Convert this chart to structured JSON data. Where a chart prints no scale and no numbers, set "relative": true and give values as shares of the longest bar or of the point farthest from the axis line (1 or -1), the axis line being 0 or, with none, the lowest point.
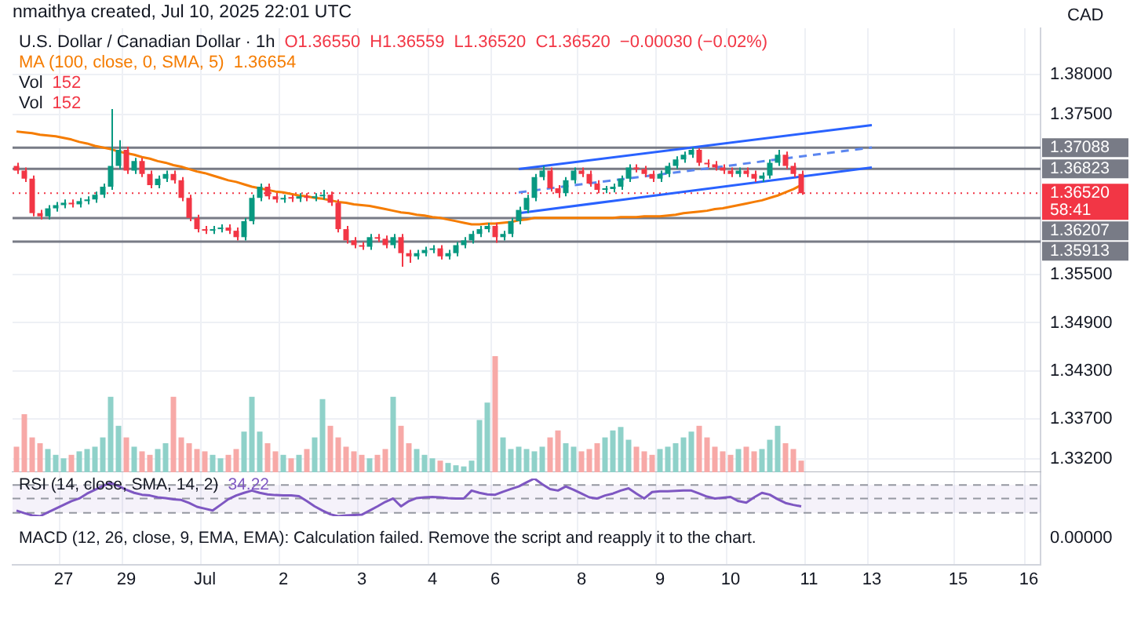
{
  "chart_data": [
    {
      "type": "candlestick",
      "title": "U.S. Dollar / Canadian Dollar · 1h",
      "annotations": [
        "nmaithya created, Jul 10, 2025 22:01 UTC",
        "O1.36550",
        "H1.36559",
        "L1.36520",
        "C1.36520",
        "−0.00030 (−0.02%)",
        "1.36654",
        "58:41",
        "CAD"
      ],
      "categories": [
        null,
        null,
        null,
        null,
        null,
        null,
        "27",
        null,
        null,
        null,
        null,
        null,
        null,
        null,
        "29",
        null,
        null,
        null,
        null,
        null,
        null,
        null,
        null,
        null,
        "Jul",
        null,
        null,
        null,
        null,
        null,
        null,
        null,
        null,
        null,
        "2",
        null,
        null,
        null,
        null,
        null,
        null,
        null,
        null,
        null,
        "3",
        null,
        null,
        null,
        null,
        null,
        null,
        null,
        null,
        "4",
        null,
        null,
        null,
        null,
        null,
        null,
        null,
        "6",
        null,
        null,
        null,
        null,
        null,
        null,
        null,
        null,
        null,
        null,
        "8",
        null,
        null,
        null,
        null,
        null,
        null,
        null,
        null,
        null,
        "9",
        null,
        null,
        null,
        null,
        null,
        null,
        null,
        null,
        "10",
        null,
        null,
        null,
        null,
        null,
        null,
        null,
        null,
        null,
        "11",
        null,
        null,
        null,
        null,
        null,
        null,
        null,
        "13",
        null,
        null,
        null,
        null,
        null,
        null,
        null,
        null,
        null,
        null,
        "15",
        null,
        null,
        null,
        null,
        null,
        null,
        null,
        null,
        "16",
        null
      ],
      "ohlc": [
        [
          1.3686,
          1.369,
          1.3676,
          1.368
        ],
        [
          1.368,
          1.3684,
          1.3666,
          1.367
        ],
        [
          1.367,
          1.3674,
          1.3623,
          1.3627
        ],
        [
          1.3627,
          1.3631,
          1.3619,
          1.3623
        ],
        [
          1.3623,
          1.3637,
          1.3619,
          1.3633
        ],
        [
          1.3633,
          1.3641,
          1.3629,
          1.3637
        ],
        [
          1.3637,
          1.3644,
          1.3633,
          1.364
        ],
        [
          1.364,
          1.3644,
          1.3634,
          1.3638
        ],
        [
          1.3638,
          1.3646,
          1.3634,
          1.3642
        ],
        [
          1.3642,
          1.3648,
          1.3638,
          1.3644
        ],
        [
          1.3644,
          1.3654,
          1.364,
          1.365
        ],
        [
          1.365,
          1.3664,
          1.3646,
          1.366
        ],
        [
          1.366,
          1.3757,
          1.3656,
          1.3686
        ],
        [
          1.3686,
          1.3718,
          1.3682,
          1.3706
        ],
        [
          1.3706,
          1.371,
          1.3676,
          1.368
        ],
        [
          1.368,
          1.3696,
          1.3676,
          1.3692
        ],
        [
          1.3692,
          1.3696,
          1.3672,
          1.3676
        ],
        [
          1.3676,
          1.368,
          1.3658,
          1.3662
        ],
        [
          1.3662,
          1.3674,
          1.3658,
          1.367
        ],
        [
          1.367,
          1.368,
          1.3666,
          1.3676
        ],
        [
          1.3676,
          1.368,
          1.3664,
          1.3668
        ],
        [
          1.3668,
          1.3672,
          1.3642,
          1.3646
        ],
        [
          1.3646,
          1.365,
          1.3617,
          1.3621
        ],
        [
          1.3621,
          1.3625,
          1.3603,
          1.3607
        ],
        [
          1.3607,
          1.3611,
          1.3601,
          1.3605
        ],
        [
          1.3605,
          1.3611,
          1.3601,
          1.3607
        ],
        [
          1.3607,
          1.3613,
          1.3603,
          1.3609
        ],
        [
          1.3609,
          1.3613,
          1.3601,
          1.3605
        ],
        [
          1.3605,
          1.3609,
          1.3593,
          1.3597
        ],
        [
          1.3597,
          1.3621,
          1.3593,
          1.3617
        ],
        [
          1.3617,
          1.365,
          1.3613,
          1.3646
        ],
        [
          1.3646,
          1.3664,
          1.3642,
          1.366
        ],
        [
          1.366,
          1.3664,
          1.3644,
          1.3648
        ],
        [
          1.3648,
          1.3652,
          1.364,
          1.3644
        ],
        [
          1.3644,
          1.365,
          1.364,
          1.3646
        ],
        [
          1.3646,
          1.365,
          1.3641,
          1.3645
        ],
        [
          1.3645,
          1.3652,
          1.3641,
          1.3648
        ],
        [
          1.3648,
          1.3652,
          1.3642,
          1.3646
        ],
        [
          1.3646,
          1.3652,
          1.3642,
          1.3648
        ],
        [
          1.3648,
          1.3656,
          1.3644,
          1.365
        ],
        [
          1.365,
          1.3654,
          1.3636,
          1.364
        ],
        [
          1.364,
          1.3644,
          1.3603,
          1.3607
        ],
        [
          1.3607,
          1.3611,
          1.3589,
          1.3593
        ],
        [
          1.3593,
          1.3597,
          1.3583,
          1.3587
        ],
        [
          1.3587,
          1.3591,
          1.3581,
          1.3585
        ],
        [
          1.3585,
          1.3601,
          1.3581,
          1.3597
        ],
        [
          1.3597,
          1.3601,
          1.3591,
          1.3595
        ],
        [
          1.3595,
          1.3599,
          1.3583,
          1.3587
        ],
        [
          1.3587,
          1.3601,
          1.3583,
          1.3597
        ],
        [
          1.3597,
          1.3601,
          1.356,
          1.3577
        ],
        [
          1.3577,
          1.3581,
          1.3565,
          1.3573
        ],
        [
          1.3573,
          1.3581,
          1.3569,
          1.3577
        ],
        [
          1.3577,
          1.3585,
          1.3573,
          1.3581
        ],
        [
          1.3581,
          1.3587,
          1.3577,
          1.3583
        ],
        [
          1.3583,
          1.3587,
          1.3569,
          1.3573
        ],
        [
          1.3573,
          1.3581,
          1.3569,
          1.3577
        ],
        [
          1.3577,
          1.3591,
          1.3573,
          1.3587
        ],
        [
          1.3587,
          1.3597,
          1.3583,
          1.3593
        ],
        [
          1.3593,
          1.3605,
          1.3589,
          1.3601
        ],
        [
          1.3601,
          1.3611,
          1.3597,
          1.3607
        ],
        [
          1.3607,
          1.3615,
          1.3603,
          1.3611
        ],
        [
          1.3611,
          1.3615,
          1.359,
          1.3597
        ],
        [
          1.3597,
          1.3605,
          1.3593,
          1.3601
        ],
        [
          1.3601,
          1.3621,
          1.3597,
          1.3617
        ],
        [
          1.3617,
          1.3635,
          1.3613,
          1.3631
        ],
        [
          1.3631,
          1.365,
          1.3627,
          1.3646
        ],
        [
          1.3646,
          1.3676,
          1.3642,
          1.3672
        ],
        [
          1.3672,
          1.3686,
          1.3668,
          1.368
        ],
        [
          1.368,
          1.3684,
          1.3654,
          1.3658
        ],
        [
          1.3658,
          1.3662,
          1.3646,
          1.3652
        ],
        [
          1.3652,
          1.3672,
          1.3648,
          1.3668
        ],
        [
          1.3668,
          1.3684,
          1.3664,
          1.368
        ],
        [
          1.368,
          1.3684,
          1.3672,
          1.3676
        ],
        [
          1.3676,
          1.368,
          1.366,
          1.3664
        ],
        [
          1.3664,
          1.3668,
          1.3652,
          1.3656
        ],
        [
          1.3656,
          1.3661,
          1.3652,
          1.3657
        ],
        [
          1.3657,
          1.3664,
          1.3653,
          1.366
        ],
        [
          1.366,
          1.3674,
          1.3656,
          1.367
        ],
        [
          1.367,
          1.3688,
          1.3666,
          1.3684
        ],
        [
          1.3684,
          1.3688,
          1.3678,
          1.3682
        ],
        [
          1.3682,
          1.3686,
          1.3672,
          1.3676
        ],
        [
          1.3676,
          1.368,
          1.3666,
          1.367
        ],
        [
          1.367,
          1.368,
          1.3666,
          1.3676
        ],
        [
          1.3676,
          1.369,
          1.3672,
          1.3686
        ],
        [
          1.3686,
          1.3698,
          1.3682,
          1.3694
        ],
        [
          1.3694,
          1.3704,
          1.369,
          1.37
        ],
        [
          1.37,
          1.3709,
          1.3696,
          1.3706
        ],
        [
          1.3706,
          1.3708,
          1.3686,
          1.369
        ],
        [
          1.369,
          1.3694,
          1.3684,
          1.3688
        ],
        [
          1.3688,
          1.3692,
          1.368,
          1.3684
        ],
        [
          1.3684,
          1.3688,
          1.3676,
          1.368
        ],
        [
          1.368,
          1.3684,
          1.3672,
          1.3676
        ],
        [
          1.3676,
          1.3684,
          1.3672,
          1.368
        ],
        [
          1.368,
          1.3684,
          1.3672,
          1.3676
        ],
        [
          1.3676,
          1.368,
          1.3666,
          1.367
        ],
        [
          1.367,
          1.3678,
          1.3666,
          1.3674
        ],
        [
          1.3674,
          1.3694,
          1.367,
          1.369
        ],
        [
          1.369,
          1.3706,
          1.3686,
          1.37
        ],
        [
          1.37,
          1.3704,
          1.3682,
          1.3686
        ],
        [
          1.3686,
          1.369,
          1.3672,
          1.3676
        ],
        [
          1.3676,
          1.368,
          1.365,
          1.3652
        ],
        null,
        null,
        null,
        null,
        null,
        null,
        null,
        null,
        null,
        null,
        null,
        null,
        null,
        null,
        null,
        null,
        null,
        null,
        null,
        null,
        null,
        null,
        null,
        null,
        null,
        null,
        null,
        null,
        null,
        null
      ],
      "colors": [
        "#f23645",
        "#f23645",
        "#f23645",
        "#f23645",
        "#089981",
        "#089981",
        "#089981",
        "#f23645",
        "#089981",
        "#089981",
        "#089981",
        "#089981",
        "#089981",
        "#089981",
        "#f23645",
        "#089981",
        "#f23645",
        "#f23645",
        "#089981",
        "#089981",
        "#f23645",
        "#f23645",
        "#f23645",
        "#f23645",
        "#f23645",
        "#089981",
        "#089981",
        "#f23645",
        "#f23645",
        "#089981",
        "#089981",
        "#089981",
        "#f23645",
        "#f23645",
        "#089981",
        "#f23645",
        "#089981",
        "#f23645",
        "#089981",
        "#089981",
        "#f23645",
        "#f23645",
        "#f23645",
        "#f23645",
        "#f23645",
        "#089981",
        "#f23645",
        "#f23645",
        "#089981",
        "#f23645",
        "#f23645",
        "#089981",
        "#089981",
        "#089981",
        "#f23645",
        "#089981",
        "#089981",
        "#089981",
        "#089981",
        "#089981",
        "#089981",
        "#f23645",
        "#089981",
        "#089981",
        "#089981",
        "#089981",
        "#089981",
        "#089981",
        "#f23645",
        "#f23645",
        "#089981",
        "#089981",
        "#f23645",
        "#f23645",
        "#f23645",
        "#089981",
        "#089981",
        "#089981",
        "#089981",
        "#f23645",
        "#f23645",
        "#f23645",
        "#089981",
        "#089981",
        "#089981",
        "#089981",
        "#089981",
        "#f23645",
        "#f23645",
        "#f23645",
        "#f23645",
        "#f23645",
        "#089981",
        "#f23645",
        "#f23645",
        "#089981",
        "#089981",
        "#089981",
        "#f23645",
        "#f23645",
        "#f23645",
        null,
        null,
        null,
        null,
        null,
        null,
        null,
        null,
        null,
        null,
        null,
        null,
        null,
        null,
        null,
        null,
        null,
        null,
        null,
        null,
        null,
        null,
        null,
        null,
        null,
        null,
        null,
        null,
        null,
        null
      ],
      "series": [
        {
          "type": "line",
          "name": "MA (100, close, 0, SMA, 5)",
          "color": "#f57c00",
          "values": [
            1.3729,
            1.3728,
            1.3727,
            1.3725,
            1.3724,
            1.3723,
            1.3721,
            1.3719,
            1.3716,
            1.3714,
            1.3711,
            1.3709,
            1.3707,
            1.3704,
            1.3702,
            1.37,
            1.3697,
            1.3695,
            1.3692,
            1.369,
            1.3687,
            1.3685,
            1.3682,
            1.3679,
            1.3677,
            1.3674,
            1.3671,
            1.3668,
            1.3666,
            1.3663,
            1.366,
            1.3658,
            1.3656,
            1.3654,
            1.3653,
            1.3651,
            1.3649,
            1.3648,
            1.3646,
            1.3645,
            1.3643,
            1.3641,
            1.364,
            1.3638,
            1.3637,
            1.3636,
            1.3634,
            1.3632,
            1.363,
            1.3628,
            1.3627,
            1.3625,
            1.3624,
            1.3622,
            1.3621,
            1.3619,
            1.3617,
            1.3615,
            1.3613,
            1.3613,
            1.3614,
            1.3614,
            1.3615,
            1.3616,
            1.3618,
            1.3619,
            1.3621,
            1.3621,
            1.3621,
            1.3621,
            1.3621,
            1.3621,
            1.3621,
            1.3621,
            1.3621,
            1.3621,
            1.3621,
            1.3622,
            1.3622,
            1.3622,
            1.3623,
            1.3623,
            1.3623,
            1.3624,
            1.3625,
            1.3627,
            1.3628,
            1.3629,
            1.363,
            1.3632,
            1.3633,
            1.3635,
            1.3637,
            1.3639,
            1.3641,
            1.3643,
            1.3646,
            1.3649,
            1.3653,
            1.3657,
            1.3662,
            null,
            null,
            null,
            null,
            null,
            null,
            null,
            null,
            null,
            null,
            null,
            null,
            null,
            null,
            null,
            null,
            null,
            null,
            null,
            null,
            null,
            null,
            null,
            null,
            null,
            null,
            null,
            null,
            null,
            null
          ]
        },
        {
          "type": "line",
          "color": "#2962ff",
          "values": [
            null,
            null,
            null,
            null,
            null,
            null,
            null,
            null,
            null,
            null,
            null,
            null,
            null,
            null,
            null,
            null,
            null,
            null,
            null,
            null,
            null,
            null,
            null,
            null,
            null,
            null,
            null,
            null,
            null,
            null,
            null,
            null,
            null,
            null,
            null,
            null,
            null,
            null,
            null,
            null,
            null,
            null,
            null,
            null,
            null,
            null,
            null,
            null,
            null,
            null,
            null,
            null,
            null,
            null,
            null,
            null,
            null,
            null,
            null,
            null,
            null,
            null,
            null,
            null,
            1.3682,
            null,
            null,
            null,
            null,
            null,
            null,
            null,
            null,
            null,
            null,
            null,
            null,
            null,
            null,
            null,
            null,
            null,
            null,
            null,
            null,
            null,
            null,
            null,
            null,
            null,
            null,
            null,
            null,
            null,
            null,
            null,
            null,
            null,
            null,
            null,
            null,
            null,
            null,
            null,
            null,
            null,
            null,
            null,
            null,
            1.3737,
            null,
            null,
            null,
            null,
            null,
            null,
            null,
            null,
            null,
            null,
            null,
            null,
            null,
            null,
            null,
            null,
            null,
            null,
            null,
            null,
            null
          ]
        },
        {
          "type": "line",
          "color": "#2962ff",
          "values": [
            null,
            null,
            null,
            null,
            null,
            null,
            null,
            null,
            null,
            null,
            null,
            null,
            null,
            null,
            null,
            null,
            null,
            null,
            null,
            null,
            null,
            null,
            null,
            null,
            null,
            null,
            null,
            null,
            null,
            null,
            null,
            null,
            null,
            null,
            null,
            null,
            null,
            null,
            null,
            null,
            null,
            null,
            null,
            null,
            null,
            null,
            null,
            null,
            null,
            null,
            null,
            null,
            null,
            null,
            null,
            null,
            null,
            null,
            null,
            null,
            null,
            null,
            null,
            null,
            1.3627,
            null,
            null,
            null,
            null,
            null,
            null,
            null,
            null,
            null,
            null,
            null,
            null,
            null,
            null,
            null,
            null,
            null,
            null,
            null,
            null,
            null,
            null,
            null,
            null,
            null,
            null,
            null,
            null,
            null,
            null,
            null,
            null,
            null,
            null,
            null,
            null,
            null,
            null,
            null,
            null,
            null,
            null,
            null,
            null,
            1.3684,
            null,
            null,
            null,
            null,
            null,
            null,
            null,
            null,
            null,
            null,
            null,
            null,
            null,
            null,
            null,
            null,
            null,
            null,
            null,
            null,
            null
          ]
        },
        {
          "type": "line",
          "color": "#5b86f0",
          "line_style": "dashed",
          "values": [
            null,
            null,
            null,
            null,
            null,
            null,
            null,
            null,
            null,
            null,
            null,
            null,
            null,
            null,
            null,
            null,
            null,
            null,
            null,
            null,
            null,
            null,
            null,
            null,
            null,
            null,
            null,
            null,
            null,
            null,
            null,
            null,
            null,
            null,
            null,
            null,
            null,
            null,
            null,
            null,
            null,
            null,
            null,
            null,
            null,
            null,
            null,
            null,
            null,
            null,
            null,
            null,
            null,
            null,
            null,
            null,
            null,
            null,
            null,
            null,
            null,
            null,
            null,
            null,
            1.3653,
            null,
            null,
            null,
            null,
            null,
            null,
            null,
            null,
            null,
            null,
            null,
            null,
            null,
            null,
            null,
            null,
            null,
            null,
            null,
            null,
            null,
            null,
            null,
            null,
            null,
            null,
            null,
            null,
            null,
            null,
            null,
            null,
            null,
            null,
            null,
            null,
            null,
            null,
            null,
            null,
            null,
            null,
            null,
            null,
            1.3709,
            null,
            null,
            null,
            null,
            null,
            null,
            null,
            null,
            null,
            null,
            null,
            null,
            null,
            null,
            null,
            null,
            null,
            null,
            null,
            null,
            null
          ]
        }
      ],
      "ylim": [
        1.3188,
        1.3858
      ],
      "yticks": [
        {
          "value": 1.38,
          "label": "1.38000"
        },
        {
          "value": 1.375,
          "label": "1.37500"
        },
        {
          "value": 1.355,
          "label": "1.35500"
        },
        {
          "value": 1.349,
          "label": "1.34900"
        },
        {
          "value": 1.343,
          "label": "1.34300"
        },
        {
          "value": 1.337,
          "label": "1.33700"
        },
        {
          "value": 1.332,
          "label": "1.33200"
        }
      ],
      "ref_lines": [
        {
          "axis": "y",
          "value": 1.37088,
          "label": "1.37088",
          "color": "#787b86"
        },
        {
          "axis": "y",
          "value": 1.36823,
          "label": "1.36823",
          "color": "#787b86"
        },
        {
          "axis": "y",
          "value": 1.36207,
          "label": "1.36207",
          "color": "#787b86"
        },
        {
          "axis": "y",
          "value": 1.35913,
          "label": "1.35913",
          "color": "#787b86"
        },
        {
          "axis": "y",
          "value": 1.3652,
          "label": "1.36520",
          "color": "#f23645",
          "line_style": "dotted"
        }
      ],
      "grid": true,
      "legend": "top left"
    },
    {
      "type": "bar",
      "relative": true,
      "title": "Vol",
      "annotations": [
        "152",
        "Vol",
        "152"
      ],
      "tick_labels": false,
      "categories": [
        null,
        null,
        null,
        null,
        null,
        null,
        null,
        null,
        null,
        null,
        null,
        null,
        null,
        null,
        null,
        null,
        null,
        null,
        null,
        null,
        null,
        null,
        null,
        null,
        null,
        null,
        null,
        null,
        null,
        null,
        null,
        null,
        null,
        null,
        null,
        null,
        null,
        null,
        null,
        null,
        null,
        null,
        null,
        null,
        null,
        null,
        null,
        null,
        null,
        null,
        null,
        null,
        null,
        null,
        null,
        null,
        null,
        null,
        null,
        null,
        null,
        null,
        null,
        null,
        null,
        null,
        null,
        null,
        null,
        null,
        null,
        null,
        null,
        null,
        null,
        null,
        null,
        null,
        null,
        null,
        null,
        null,
        null,
        null,
        null,
        null,
        null,
        null,
        null,
        null,
        null,
        null,
        null,
        null,
        null,
        null,
        null,
        null,
        null,
        null,
        null,
        null,
        null,
        null,
        null,
        null,
        null,
        null,
        null,
        null,
        null,
        null,
        null,
        null,
        null,
        null,
        null,
        null,
        null,
        null,
        null,
        null,
        null,
        null,
        null,
        null,
        null,
        null,
        null,
        null,
        null
      ],
      "values": [
        0.22,
        0.5,
        0.3,
        0.25,
        0.2,
        0.15,
        0.12,
        0.15,
        0.18,
        0.2,
        0.22,
        0.3,
        0.65,
        0.4,
        0.3,
        0.22,
        0.18,
        0.15,
        0.2,
        0.25,
        0.65,
        0.3,
        0.25,
        0.2,
        0.18,
        0.15,
        0.12,
        0.15,
        0.2,
        0.35,
        0.65,
        0.35,
        0.25,
        0.18,
        0.15,
        0.12,
        0.15,
        0.2,
        0.3,
        0.63,
        0.4,
        0.3,
        0.22,
        0.18,
        0.15,
        0.12,
        0.15,
        0.2,
        0.65,
        0.4,
        0.25,
        0.2,
        0.15,
        0.12,
        0.1,
        0.08,
        0.06,
        0.05,
        0.1,
        0.45,
        0.6,
        1,
        0.3,
        0.2,
        0.22,
        0.2,
        0.18,
        0.22,
        0.3,
        0.36,
        0.25,
        0.22,
        0.18,
        0.2,
        0.25,
        0.3,
        0.36,
        0.39,
        0.28,
        0.22,
        0.18,
        0.15,
        0.2,
        0.22,
        0.25,
        0.3,
        0.35,
        0.4,
        0.3,
        0.22,
        0.18,
        0.15,
        0.2,
        0.22,
        0.18,
        0.2,
        0.28,
        0.4,
        0.25,
        0.2,
        0.1,
        null,
        null,
        null,
        null,
        null,
        null,
        null,
        null,
        null,
        null,
        null,
        null,
        null,
        null,
        null,
        null,
        null,
        null,
        null,
        null,
        null,
        null,
        null,
        null,
        null,
        null,
        null,
        null,
        null,
        null
      ],
      "colors": [
        "#f7a9a7",
        "#f7a9a7",
        "#f7a9a7",
        "#f7a9a7",
        "#8fd1c9",
        "#8fd1c9",
        "#8fd1c9",
        "#f7a9a7",
        "#8fd1c9",
        "#8fd1c9",
        "#8fd1c9",
        "#8fd1c9",
        "#8fd1c9",
        "#8fd1c9",
        "#f7a9a7",
        "#8fd1c9",
        "#f7a9a7",
        "#f7a9a7",
        "#8fd1c9",
        "#8fd1c9",
        "#f7a9a7",
        "#f7a9a7",
        "#f7a9a7",
        "#f7a9a7",
        "#f7a9a7",
        "#8fd1c9",
        "#8fd1c9",
        "#f7a9a7",
        "#f7a9a7",
        "#8fd1c9",
        "#8fd1c9",
        "#8fd1c9",
        "#f7a9a7",
        "#f7a9a7",
        "#8fd1c9",
        "#f7a9a7",
        "#8fd1c9",
        "#f7a9a7",
        "#8fd1c9",
        "#8fd1c9",
        "#f7a9a7",
        "#f7a9a7",
        "#f7a9a7",
        "#f7a9a7",
        "#f7a9a7",
        "#8fd1c9",
        "#f7a9a7",
        "#f7a9a7",
        "#8fd1c9",
        "#f7a9a7",
        "#f7a9a7",
        "#8fd1c9",
        "#8fd1c9",
        "#8fd1c9",
        "#f7a9a7",
        "#8fd1c9",
        "#8fd1c9",
        "#8fd1c9",
        "#8fd1c9",
        "#8fd1c9",
        "#8fd1c9",
        "#f7a9a7",
        "#8fd1c9",
        "#8fd1c9",
        "#8fd1c9",
        "#8fd1c9",
        "#8fd1c9",
        "#8fd1c9",
        "#f7a9a7",
        "#f7a9a7",
        "#8fd1c9",
        "#8fd1c9",
        "#f7a9a7",
        "#f7a9a7",
        "#f7a9a7",
        "#8fd1c9",
        "#8fd1c9",
        "#8fd1c9",
        "#8fd1c9",
        "#f7a9a7",
        "#f7a9a7",
        "#f7a9a7",
        "#8fd1c9",
        "#8fd1c9",
        "#8fd1c9",
        "#8fd1c9",
        "#8fd1c9",
        "#f7a9a7",
        "#f7a9a7",
        "#f7a9a7",
        "#f7a9a7",
        "#f7a9a7",
        "#8fd1c9",
        "#f7a9a7",
        "#f7a9a7",
        "#8fd1c9",
        "#8fd1c9",
        "#8fd1c9",
        "#f7a9a7",
        "#f7a9a7",
        "#f7a9a7",
        null,
        null,
        null,
        null,
        null,
        null,
        null,
        null,
        null,
        null,
        null,
        null,
        null,
        null,
        null,
        null,
        null,
        null,
        null,
        null,
        null,
        null,
        null,
        null,
        null,
        null,
        null,
        null,
        null,
        null
      ]
    },
    {
      "type": "line",
      "relative": true,
      "title": "RSI (14, close, SMA, 14, 2)",
      "annotations": [
        "34.22"
      ],
      "tick_labels": false,
      "color": "#7e57c2",
      "bands": [
        {
          "axis": "y",
          "from": 0.09,
          "to": 0.83,
          "color": "#7e57c2"
        }
      ],
      "ref_lines": [
        {
          "axis": "y",
          "value": 0.83,
          "color": "#9598a1",
          "line_style": "dashed"
        },
        {
          "axis": "y",
          "value": 0.47,
          "color": "#9598a1",
          "line_style": "dashed"
        },
        {
          "axis": "y",
          "value": 0.09,
          "color": "#9598a1",
          "line_style": "dashed"
        }
      ],
      "categories": [
        null,
        null,
        null,
        null,
        null,
        null,
        null,
        null,
        null,
        null,
        null,
        null,
        null,
        null,
        null,
        null,
        null,
        null,
        null,
        null,
        null,
        null,
        null,
        null,
        null,
        null,
        null,
        null,
        null,
        null,
        null,
        null,
        null,
        null,
        null,
        null,
        null,
        null,
        null,
        null,
        null,
        null,
        null,
        null,
        null,
        null,
        null,
        null,
        null,
        null,
        null,
        null,
        null,
        null,
        null,
        null,
        null,
        null,
        null,
        null,
        null,
        null,
        null,
        null,
        null,
        null,
        null,
        null,
        null,
        null,
        null,
        null,
        null,
        null,
        null,
        null,
        null,
        null,
        null,
        null,
        null,
        null,
        null,
        null,
        null,
        null,
        null,
        null,
        null,
        null,
        null,
        null,
        null,
        null,
        null,
        null,
        null,
        null,
        null,
        null,
        null,
        null,
        null,
        null,
        null,
        null,
        null,
        null,
        null,
        null,
        null,
        null,
        null,
        null,
        null,
        null,
        null,
        null,
        null,
        null,
        null,
        null,
        null,
        null,
        null,
        null,
        null,
        null,
        null,
        null,
        null
      ],
      "values": [
        0.15,
        0.08,
        0.02,
        0,
        0.1,
        0.2,
        0.3,
        0.4,
        0.47,
        0.6,
        0.7,
        0.8,
        0.89,
        0.8,
        0.7,
        0.62,
        0.57,
        0.55,
        0.5,
        0.48,
        0.45,
        0.43,
        0.35,
        0.25,
        0.2,
        0.15,
        0.3,
        0.45,
        0.55,
        0.62,
        0.68,
        0.62,
        0.58,
        0.56,
        0.55,
        0.55,
        0.53,
        0.4,
        0.26,
        0.15,
        0.05,
        0,
        0.02,
        0.03,
        0.04,
        0.15,
        0.26,
        0.38,
        0.47,
        0.26,
        0.4,
        0.48,
        0.5,
        0.51,
        0.5,
        0.48,
        0.47,
        0.47,
        0.68,
        0.62,
        0.58,
        0.57,
        0.65,
        0.72,
        0.79,
        0.9,
        1,
        0.85,
        0.72,
        0.68,
        0.79,
        0.7,
        0.6,
        0.5,
        0.47,
        0.55,
        0.6,
        0.68,
        0.74,
        0.6,
        0.47,
        0.64,
        0.66,
        0.66,
        0.67,
        0.68,
        0.68,
        0.6,
        0.52,
        0.47,
        0.49,
        0.51,
        0.4,
        0.36,
        0.5,
        0.62,
        0.57,
        0.45,
        0.35,
        0.3,
        0.26,
        null,
        null,
        null,
        null,
        null,
        null,
        null,
        null,
        null,
        null,
        null,
        null,
        null,
        null,
        null,
        null,
        null,
        null,
        null,
        null,
        null,
        null,
        null,
        null,
        null,
        null,
        null,
        null,
        null,
        null
      ]
    },
    {
      "type": "other",
      "title": "MACD (12, 26, close, 9, EMA, EMA): Calculation failed. Remove the script and reapply it to the chart.",
      "annotations": [
        "0.00000"
      ]
    }
  ]
}
